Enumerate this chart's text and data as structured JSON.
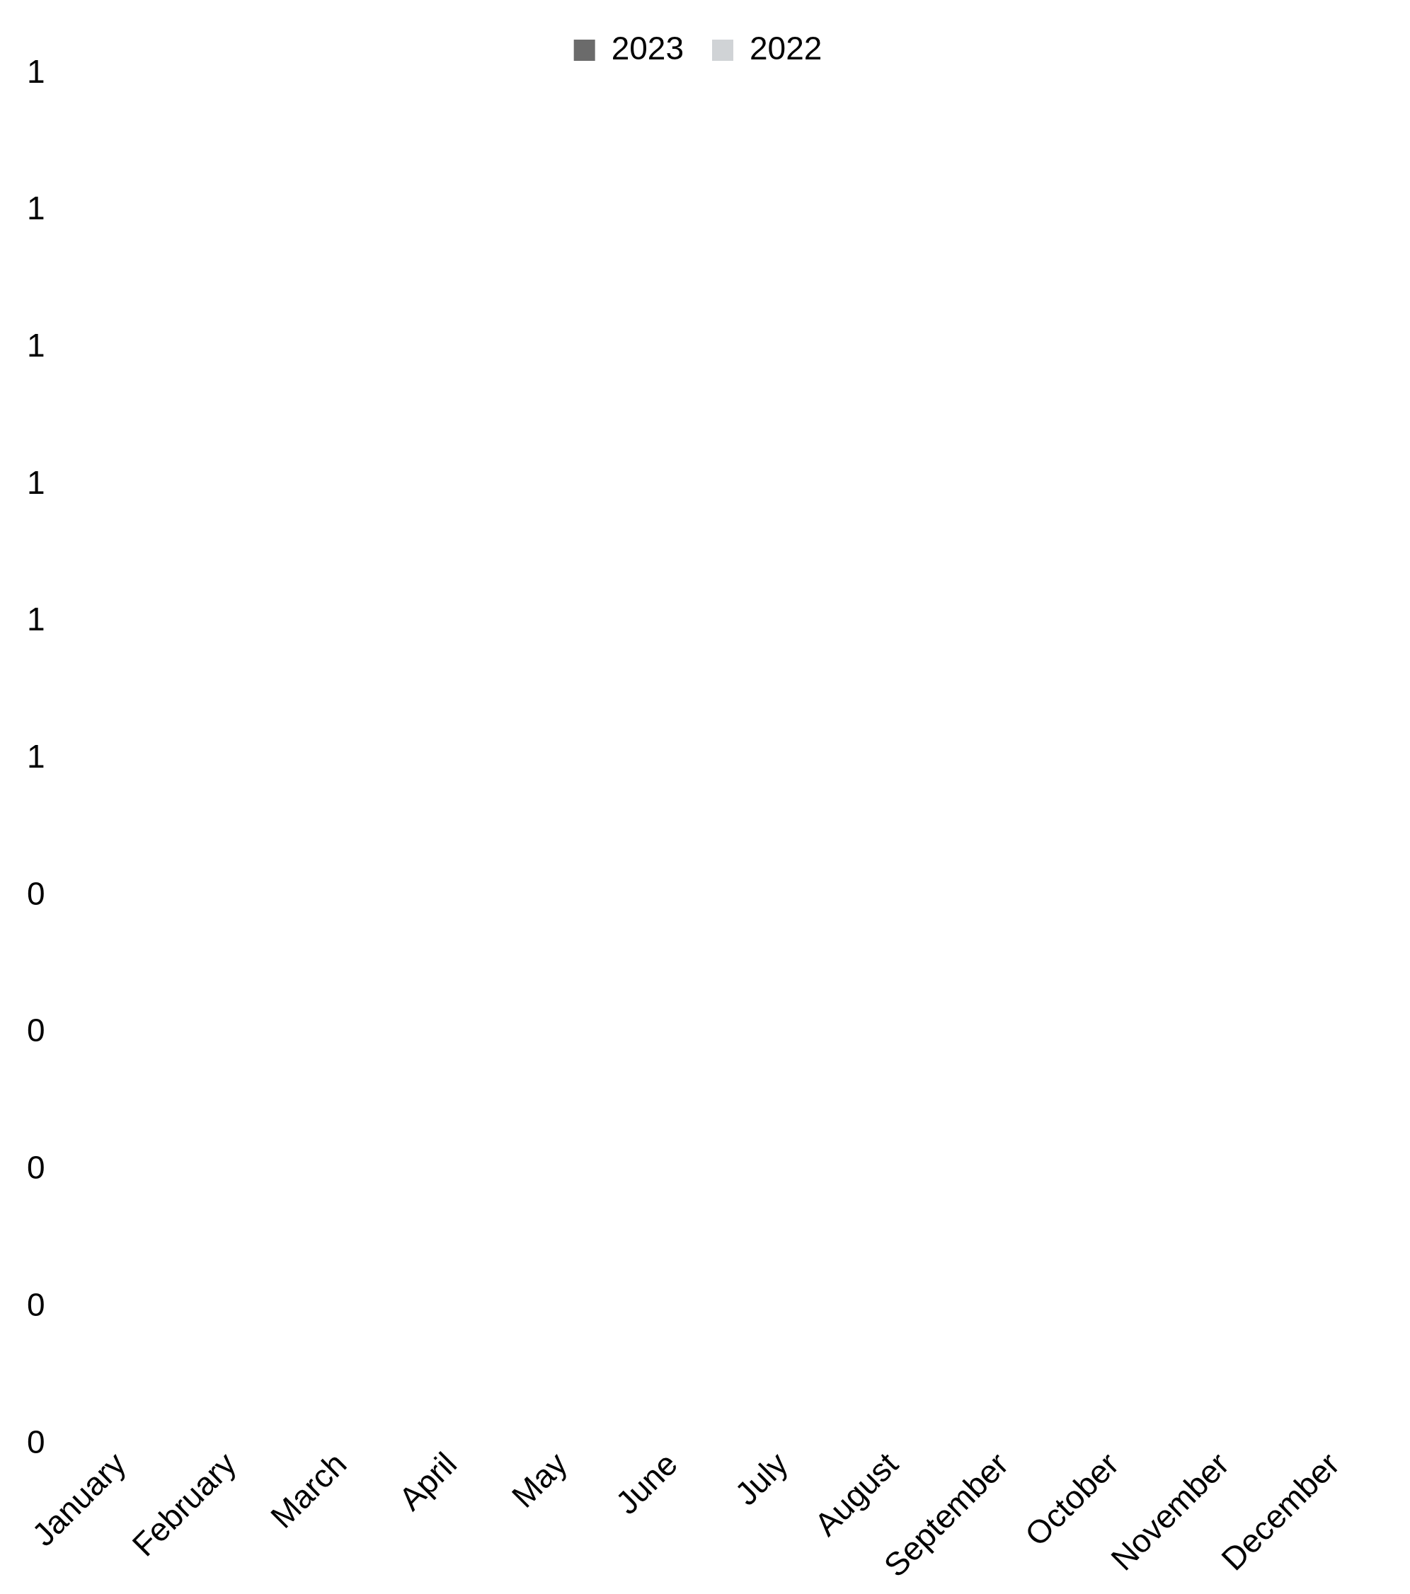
{
  "chart_data": {
    "type": "bar",
    "categories": [
      "January",
      "February",
      "March",
      "April",
      "May",
      "June",
      "July",
      "August",
      "September",
      "October",
      "November",
      "December"
    ],
    "series": [
      {
        "name": "2023",
        "color": "#6b6b6b",
        "values": [
          0,
          0,
          0,
          0,
          0,
          0,
          0,
          0,
          0,
          0,
          0,
          0
        ]
      },
      {
        "name": "2022",
        "color": "#d0d3d6",
        "values": [
          0,
          0,
          0,
          0,
          0,
          0,
          0,
          0,
          0,
          0,
          0,
          0
        ]
      }
    ],
    "ylim": [
      0,
      1
    ],
    "yticks": [
      {
        "value": 0,
        "label": "0"
      },
      {
        "value": 0.1,
        "label": "0"
      },
      {
        "value": 0.2,
        "label": "0"
      },
      {
        "value": 0.3,
        "label": "0"
      },
      {
        "value": 0.4,
        "label": "0"
      },
      {
        "value": 0.5,
        "label": "1"
      },
      {
        "value": 0.6,
        "label": "1"
      },
      {
        "value": 0.7,
        "label": "1"
      },
      {
        "value": 0.8,
        "label": "1"
      },
      {
        "value": 0.9,
        "label": "1"
      },
      {
        "value": 1,
        "label": "1"
      }
    ],
    "grid": false,
    "legend": "top"
  }
}
